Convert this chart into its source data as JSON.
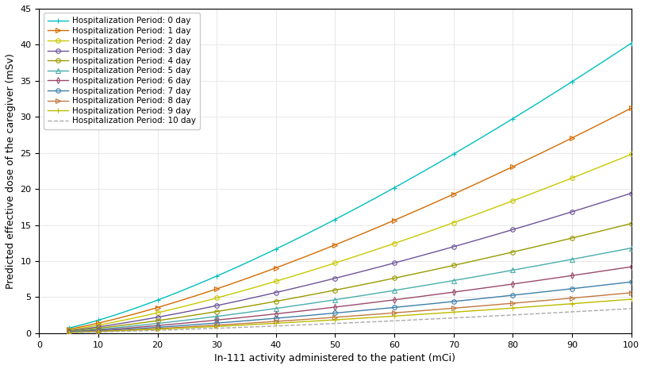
{
  "xlabel": "In-111 activity administered to the patient (mCi)",
  "ylabel": "Predicted effective dose of the caregiver (mSv)",
  "xlim": [
    0,
    100
  ],
  "ylim": [
    0,
    45
  ],
  "xticks": [
    0,
    10,
    20,
    30,
    40,
    50,
    60,
    70,
    80,
    90,
    100
  ],
  "yticks": [
    0,
    5,
    10,
    15,
    20,
    25,
    30,
    35,
    40,
    45
  ],
  "series": [
    {
      "label": "Hospitalization Period: 0 day",
      "color": "#00BEBE",
      "marker": "+",
      "linestyle": "-",
      "scale": 0.402,
      "power": 1.35
    },
    {
      "label": "Hospitalization Period: 1 day",
      "color": "#D46B00",
      "marker": ">",
      "linestyle": "-",
      "scale": 0.312,
      "power": 1.35
    },
    {
      "label": "Hospitalization Period: 2 day",
      "color": "#C8C800",
      "marker": "o",
      "linestyle": "-",
      "scale": 0.248,
      "power": 1.35
    },
    {
      "label": "Hospitalization Period: 3 day",
      "color": "#6E5499",
      "marker": "o",
      "linestyle": "-",
      "scale": 0.194,
      "power": 1.35
    },
    {
      "label": "Hospitalization Period: 4 day",
      "color": "#9A9A00",
      "marker": "o",
      "linestyle": "-",
      "scale": 0.152,
      "power": 1.35
    },
    {
      "label": "Hospitalization Period: 5 day",
      "color": "#4AADAD",
      "marker": "^",
      "linestyle": "-",
      "scale": 0.118,
      "power": 1.35
    },
    {
      "label": "Hospitalization Period: 6 day",
      "color": "#9B4A6B",
      "marker": "d",
      "linestyle": "-",
      "scale": 0.092,
      "power": 1.35
    },
    {
      "label": "Hospitalization Period: 7 day",
      "color": "#3D7FA8",
      "marker": "o",
      "linestyle": "-",
      "scale": 0.071,
      "power": 1.35
    },
    {
      "label": "Hospitalization Period: 8 day",
      "color": "#C07940",
      "marker": ">",
      "linestyle": "-",
      "scale": 0.056,
      "power": 1.35
    },
    {
      "label": "Hospitalization Period: 9 day",
      "color": "#BBBB00",
      "marker": "+",
      "linestyle": "-",
      "scale": 0.047,
      "power": 1.35
    },
    {
      "label": "Hospitalization Period: 10 day",
      "color": "#AAAAAA",
      "marker": "none",
      "linestyle": "--",
      "scale": 0.034,
      "power": 1.35
    }
  ],
  "figsize": [
    8.13,
    4.65
  ],
  "dpi": 100,
  "bg_color": "#FFFFFF",
  "grid_color": "#E8E8E8",
  "marker_size": 4,
  "linewidth": 1.0
}
